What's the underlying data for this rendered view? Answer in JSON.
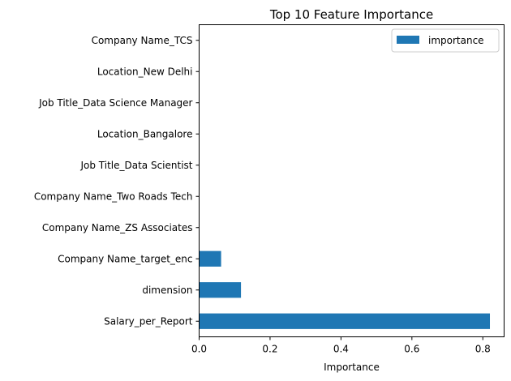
{
  "chart_data": {
    "type": "bar",
    "orientation": "horizontal",
    "title": "Top 10 Feature Importance",
    "xlabel": "Importance",
    "ylabel": "",
    "xlim": [
      0,
      0.86
    ],
    "xticks": [
      "0.0",
      "0.2",
      "0.4",
      "0.6",
      "0.8"
    ],
    "xtick_values": [
      0.0,
      0.2,
      0.4,
      0.6,
      0.8
    ],
    "legend_position": "top-right",
    "grid": false,
    "bar_color": "#1f77b4",
    "categories": [
      "Company Name_TCS",
      "Location_New Delhi",
      "Job Title_Data Science Manager",
      "Location_Bangalore",
      "Job Title_Data Scientist",
      "Company Name_Two Roads Tech",
      "Company Name_ZS Associates",
      "Company Name_target_enc",
      "dimension",
      "Salary_per_Report"
    ],
    "series": [
      {
        "name": "importance",
        "values": [
          0.0005,
          0.0005,
          0.0005,
          0.0005,
          0.0005,
          0.0006,
          0.0006,
          0.062,
          0.118,
          0.82
        ]
      }
    ]
  }
}
